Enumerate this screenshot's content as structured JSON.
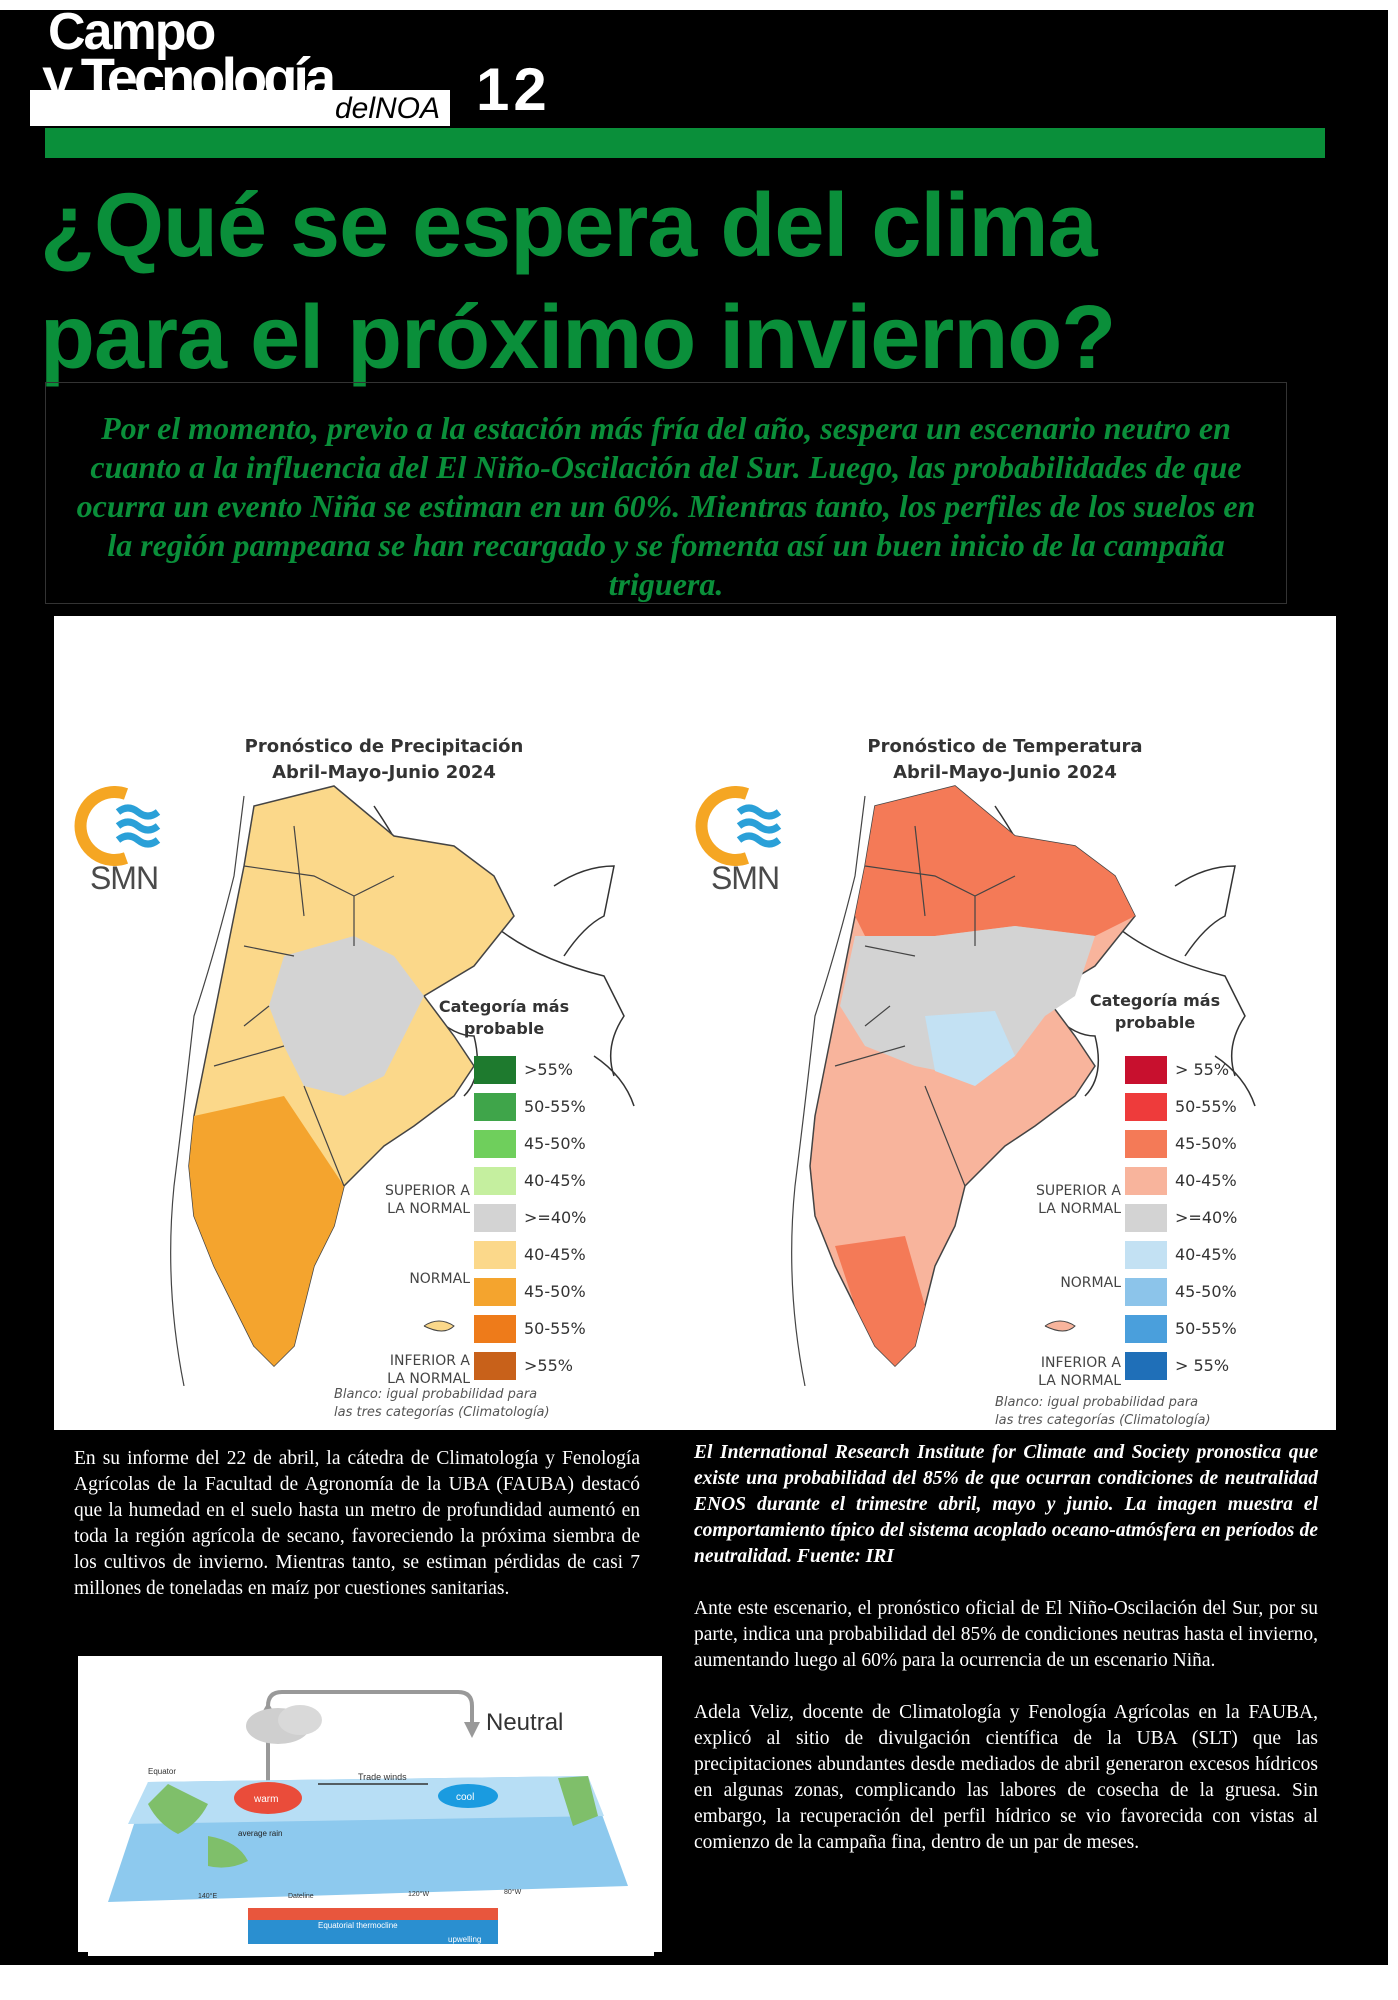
{
  "header": {
    "logo_line1": "Campo",
    "logo_line2": "y Tecnología",
    "logo_sub": "delNOA",
    "issue_number": "12"
  },
  "headline_line1": "¿Qué se espera del clima",
  "headline_line2": "para el próximo invierno?",
  "lead": "Por el momento, previo a la estación más fría del año, sespera un escenario neutro en cuanto a la influencia del El Niño-Oscilación del Sur. Luego, las probabilidades de que ocurra un evento Niña se estiman en un 60%. Mientras tanto, los perfiles de los suelos en la región pampeana se han recargado y se fomenta así un buen inicio de la campaña triguera.",
  "maps": {
    "precip": {
      "title_line1": "Pronóstico de Precipitación",
      "title_line2": "Abril-Mayo-Junio 2024",
      "logo_text": "SMN",
      "legend_title_line1": "Categoría más",
      "legend_title_line2": "probable",
      "cat_superior": "SUPERIOR A LA NORMAL",
      "cat_normal": "NORMAL",
      "cat_inferior": "INFERIOR A LA NORMAL",
      "legend": [
        {
          "label": ">55%",
          "color": "#1e7a2e"
        },
        {
          "label": "50-55%",
          "color": "#3fa54a"
        },
        {
          "label": "45-50%",
          "color": "#6fcf5c"
        },
        {
          "label": "40-45%",
          "color": "#c5ef9f"
        },
        {
          "label": ">=40%",
          "color": "#d3d3d3"
        },
        {
          "label": "40-45%",
          "color": "#fbd88a"
        },
        {
          "label": "45-50%",
          "color": "#f4a42e"
        },
        {
          "label": "50-55%",
          "color": "#ee7b1a"
        },
        {
          "label": ">55%",
          "color": "#c8611a"
        }
      ],
      "footnote_line1": "Blanco: igual probabilidad para",
      "footnote_line2": "las tres categorías (Climatología)"
    },
    "temp": {
      "title_line1": "Pronóstico de Temperatura",
      "title_line2": "Abril-Mayo-Junio 2024",
      "logo_text": "SMN",
      "legend_title_line1": "Categoría más",
      "legend_title_line2": "probable",
      "cat_superior": "SUPERIOR A LA NORMAL",
      "cat_normal": "NORMAL",
      "cat_inferior": "INFERIOR A LA NORMAL",
      "legend": [
        {
          "label": "> 55%",
          "color": "#c8102e"
        },
        {
          "label": "50-55%",
          "color": "#ee3b3b"
        },
        {
          "label": "45-50%",
          "color": "#f47a57"
        },
        {
          "label": "40-45%",
          "color": "#f8b49c"
        },
        {
          "label": ">=40%",
          "color": "#d3d3d3"
        },
        {
          "label": "40-45%",
          "color": "#c3e1f3"
        },
        {
          "label": "45-50%",
          "color": "#8cc4ea"
        },
        {
          "label": "50-55%",
          "color": "#4a9fdc"
        },
        {
          "label": "> 55%",
          "color": "#1f6fb8"
        }
      ],
      "footnote_line1": "Blanco: igual probabilidad para",
      "footnote_line2": "las tres categorías (Climatología)"
    }
  },
  "body_left": "En su informe del 22 de abril, la cátedra de Climatología y Fenología Agrícolas de la Facultad de Agronomía de la UBA (FAUBA) destacó que la humedad en el suelo hasta un metro de profundidad aumentó en toda la región agrícola de secano, favoreciendo la próxima siembra de los cultivos de invierno. Mientras tanto, se estiman pérdidas de casi 7 millones de toneladas en maíz por cuestiones sanitarias.",
  "caption": "El International Research Institute for Climate and Society pronostica que existe una probabilidad del 85% de que ocurran condiciones de neutralidad ENOS durante el trimestre abril, mayo y junio. La imagen muestra el comportamiento típico del sistema acoplado oceano-atmósfera en períodos de neutralidad. Fuente: IRI",
  "body_right_1": "Ante este escenario, el pronóstico oficial de El Niño-Oscilación del Sur, por su parte, indica una probabilidad del 85% de condiciones neutras hasta el invierno, aumentando luego al 60% para la ocurrencia de un escenario Niña.",
  "body_right_2": "Adela Veliz, docente de Climatología y Fenología Agrícolas en la FAUBA, explicó al sitio de divulgación científica de la UBA (SLT) que las precipitaciones abundantes desde mediados de abril generaron excesos hídricos en algunas zonas, complicando las labores de cosecha de la gruesa. Sin embargo, la recuperación del perfil hídrico se vio favorecida con vistas al comienzo de la campaña fina, dentro de un par de meses.",
  "enso_diagram": {
    "title": "Neutral",
    "equator": "Equator",
    "warm": "warm",
    "cool": "cool",
    "trade_winds": "Trade winds",
    "average_rain": "average rain",
    "thermocline": "Equatorial thermocline",
    "upwelling": "upwelling",
    "lon_140e": "140°E",
    "lon_dateline": "Dateline",
    "lon_120w": "120°W",
    "lon_80w": "80°W"
  }
}
